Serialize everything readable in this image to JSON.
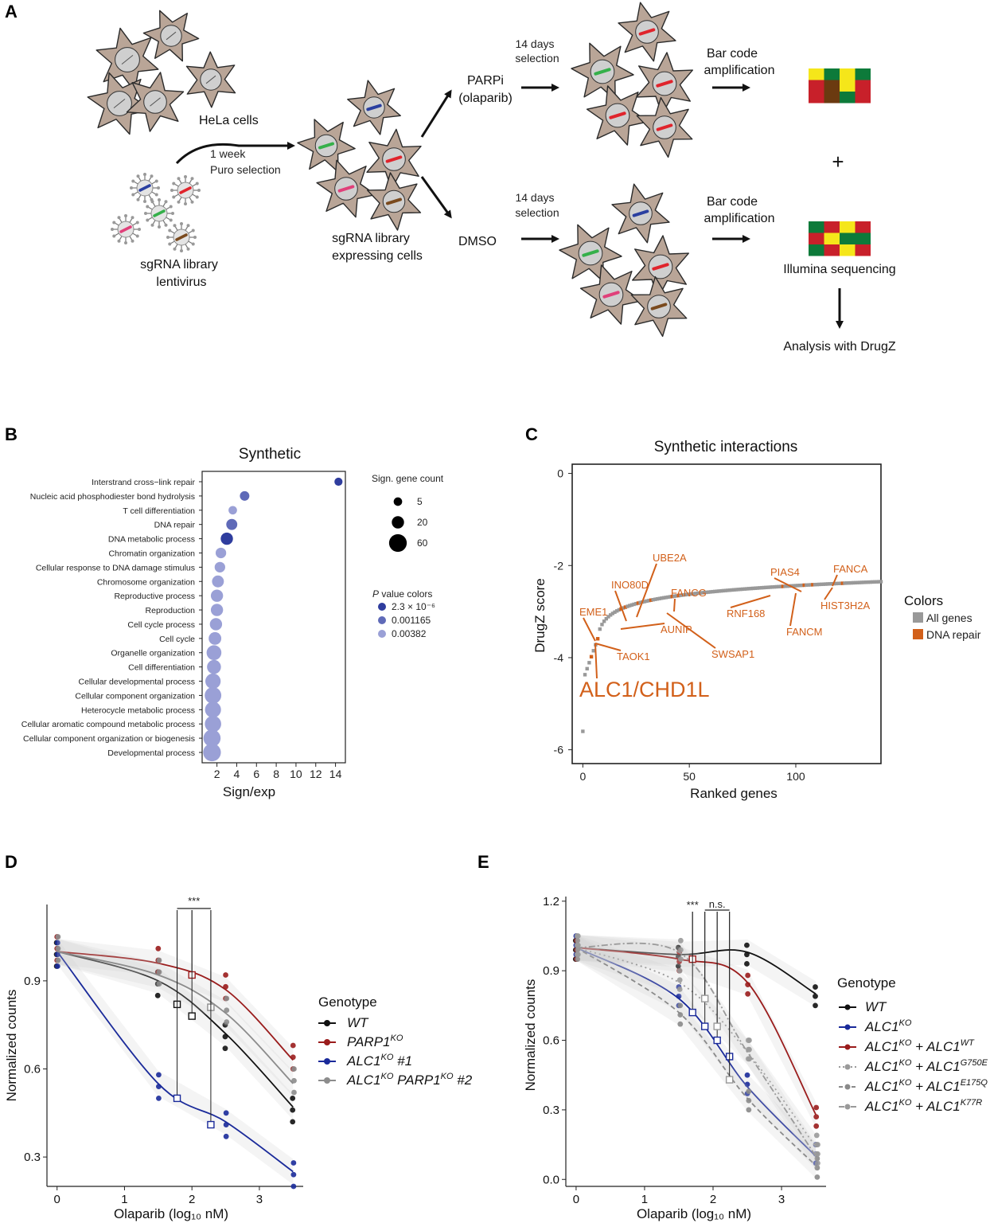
{
  "panels": {
    "A": "A",
    "B": "B",
    "C": "C",
    "D": "D",
    "E": "E"
  },
  "schematic": {
    "hela_cells": "HeLa cells",
    "one_week": "1 week",
    "puro_selection": "Puro selection",
    "library_virus_1": "sgRNA library",
    "library_virus_2": "lentivirus",
    "library_cells_1": "sgRNA library",
    "library_cells_2": "expressing cells",
    "parpi_1": "PARPi",
    "parpi_2": "(olaparib)",
    "dmso": "DMSO",
    "days_1": "14 days",
    "days_2": "selection",
    "barcode_1": "Bar code",
    "barcode_2": "amplification",
    "plus": "+",
    "illumina": "Illumina sequencing",
    "analysis": "Analysis with DrugZ",
    "colors": {
      "cell_fill": "#b9a597",
      "nucleus": "#cfcfcf",
      "guide_red": "#e0242c",
      "guide_green": "#35b04a",
      "guide_blue": "#2a3fa0",
      "guide_pink": "#e0407a",
      "guide_brown": "#7a4a1e",
      "heat_red": "#c8202a",
      "heat_green": "#0d7a3a",
      "heat_yellow": "#f5e61a",
      "heat_brown": "#6b3a10"
    }
  },
  "chart_data": [
    {
      "id": "B",
      "type": "scatter",
      "title": "Synthetic",
      "xlabel": "Sign/exp",
      "xticks": [
        2,
        4,
        6,
        8,
        10,
        12,
        14
      ],
      "xlim": [
        0.5,
        15
      ],
      "categories": [
        "Interstrand cross−link repair",
        "Nucleic acid phosphodiester bond hydrolysis",
        "T cell differentiation",
        "DNA repair",
        "DNA metabolic process",
        "Chromatin organization",
        "Cellular response to DNA damage stimulus",
        "Chromosome organization",
        "Reproductive process",
        "Reproduction",
        "Cell cycle process",
        "Cell cycle",
        "Organelle organization",
        "Cell differentiation",
        "Cellular developmental process",
        "Cellular component organization",
        "Heterocycle metabolic process",
        "Cellular aromatic compound metabolic process",
        "Cellular component organization or biogenesis",
        "Developmental process"
      ],
      "values": [
        14.3,
        4.8,
        3.6,
        3.5,
        3.0,
        2.4,
        2.3,
        2.1,
        2.0,
        2.0,
        1.9,
        1.8,
        1.7,
        1.7,
        1.6,
        1.6,
        1.6,
        1.6,
        1.5,
        1.5
      ],
      "gene_counts": [
        4,
        8,
        5,
        14,
        20,
        12,
        12,
        18,
        20,
        20,
        20,
        22,
        36,
        30,
        40,
        50,
        45,
        48,
        55,
        60
      ],
      "pvalue_shade": [
        0,
        1,
        2,
        1,
        0,
        2,
        2,
        2,
        2,
        2,
        2,
        2,
        2,
        2,
        2,
        2,
        2,
        2,
        2,
        2
      ],
      "legend": {
        "size_title": "Sign. gene count",
        "size_values": [
          "5",
          "20",
          "60"
        ],
        "color_title_italic": "P",
        "color_title_rest": " value colors",
        "color_values": [
          "2.3 × 10⁻⁶",
          "0.001165",
          "0.00382"
        ],
        "colors": [
          "#2f3d9e",
          "#5f6ab8",
          "#9aa0d6"
        ]
      }
    },
    {
      "id": "C",
      "type": "scatter",
      "title": "Synthetic interactions",
      "xlabel": "Ranked genes",
      "ylabel": "DrugZ score",
      "xticks": [
        0,
        50,
        100
      ],
      "yticks": [
        0,
        -2,
        -4,
        -6
      ],
      "xlim": [
        -5,
        140
      ],
      "ylim": [
        -6.3,
        0.2
      ],
      "legend": {
        "title": "Colors",
        "items": [
          "All genes",
          "DNA repair"
        ],
        "colors": [
          "#999999",
          "#d2601a"
        ]
      },
      "highlight": "ALC1/CHD1L",
      "labels": [
        "UBE2A",
        "INO80D",
        "FANCG",
        "EME1",
        "AUNIP",
        "TAOK1",
        "SWSAP1",
        "RNF168",
        "PIAS4",
        "FANCA",
        "HIST3H2A",
        "FANCM"
      ]
    },
    {
      "id": "D",
      "type": "line",
      "xlabel": "Olaparib (log₁₀ nM)",
      "ylabel": "Normalized counts",
      "xticks": [
        0,
        1,
        2,
        3
      ],
      "yticks": [
        0.3,
        0.6,
        0.9
      ],
      "xlim": [
        -0.15,
        3.65
      ],
      "ylim": [
        0.2,
        1.16
      ],
      "significance": "***",
      "legend_title": "Genotype",
      "series": [
        {
          "name": "WT",
          "color": "#111111",
          "x": [
            0,
            1.5,
            2.5,
            3.5
          ],
          "mean": [
            1.0,
            0.9,
            0.72,
            0.47
          ]
        },
        {
          "name": "PARP1",
          "sup": "KO",
          "color": "#9a1c1c",
          "x": [
            0,
            1.5,
            2.5,
            3.5
          ],
          "mean": [
            1.0,
            0.96,
            0.87,
            0.63
          ]
        },
        {
          "name": "ALC1",
          "sup": "KO",
          "suffix": " #1",
          "color": "#1a2a9a",
          "x": [
            0,
            1.5,
            2.5,
            3.5
          ],
          "mean": [
            1.0,
            0.55,
            0.42,
            0.25
          ]
        },
        {
          "name": "ALC1",
          "sup": "KO",
          "name2": " PARP1",
          "sup2": "KO",
          "suffix": " #2",
          "color": "#8c8c8c",
          "x": [
            0,
            1.5,
            2.5,
            3.5
          ],
          "mean": [
            1.0,
            0.92,
            0.79,
            0.55
          ]
        }
      ]
    },
    {
      "id": "E",
      "type": "line",
      "xlabel": "Olaparib (log₁₀ nM)",
      "ylabel": "Normalized counts",
      "xticks": [
        0,
        1,
        2,
        3
      ],
      "yticks": [
        0.0,
        0.3,
        0.6,
        0.9,
        1.2
      ],
      "ytick_labels": [
        "0.0",
        "0.3",
        "0.6",
        "0.9",
        "1.2"
      ],
      "xlim": [
        -0.15,
        3.65
      ],
      "ylim": [
        -0.03,
        1.22
      ],
      "significance": [
        "***",
        "n.s."
      ],
      "legend_title": "Genotype",
      "series": [
        {
          "name": "WT",
          "color": "#111111",
          "x": [
            0,
            1.5,
            2.5,
            3.5
          ],
          "mean": [
            1.0,
            0.97,
            0.98,
            0.8
          ]
        },
        {
          "name": "ALC1",
          "sup": "KO",
          "color": "#1a2a9a",
          "x": [
            0,
            1.5,
            2.5,
            3.5
          ],
          "mean": [
            1.0,
            0.78,
            0.4,
            0.1
          ]
        },
        {
          "name": "ALC1",
          "sup": "KO",
          "name2": " + ALC1",
          "sup2": "WT",
          "color": "#9a1c1c",
          "x": [
            0,
            1.5,
            2.5,
            3.5
          ],
          "mean": [
            1.0,
            0.95,
            0.85,
            0.28
          ]
        },
        {
          "name": "ALC1",
          "sup": "KO",
          "name2": " + ALC1",
          "sup2": "G750E",
          "color": "#9a9a9a",
          "x": [
            0,
            1.5,
            2.5,
            3.5
          ],
          "mean": [
            1.0,
            0.85,
            0.55,
            0.14
          ]
        },
        {
          "name": "ALC1",
          "sup": "KO",
          "name2": " + ALC1",
          "sup2": "E175Q",
          "color": "#8a8a8a",
          "x": [
            0,
            1.5,
            2.5,
            3.5
          ],
          "mean": [
            1.0,
            0.72,
            0.35,
            0.06
          ]
        },
        {
          "name": "ALC1",
          "sup": "KO",
          "name2": " + ALC1",
          "sup2": "K77R",
          "color": "#9a9a9a",
          "x": [
            0,
            1.5,
            2.5,
            3.5
          ],
          "mean": [
            1.0,
            0.98,
            0.55,
            0.1
          ]
        }
      ]
    }
  ]
}
